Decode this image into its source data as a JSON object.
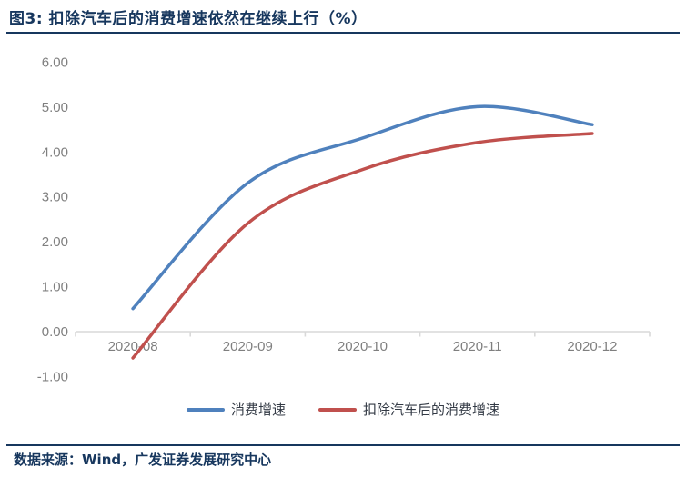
{
  "header": {
    "title": "图3:  扣除汽车后的消费增速依然在继续上行（%）"
  },
  "footer": {
    "source": "数据来源：Wind，广发证券发展研究中心"
  },
  "colors": {
    "title_navy": "#17375E",
    "axis_line": "#D9D9D9",
    "tick_label": "#7F7F7F",
    "series_blue": "#4F81BD",
    "series_red": "#C0504D"
  },
  "chart_data": {
    "type": "line",
    "smooth": true,
    "title": "图3:  扣除汽车后的消费增速依然在继续上行（%）",
    "categories": [
      "2020-08",
      "2020-09",
      "2020-10",
      "2020-11",
      "2020-12"
    ],
    "series": [
      {
        "name": "消费增速",
        "color": "#4F81BD",
        "values": [
          0.5,
          3.3,
          4.3,
          5.0,
          4.6
        ]
      },
      {
        "name": "扣除汽车后的消费增速",
        "color": "#C0504D",
        "values": [
          -0.6,
          2.4,
          3.6,
          4.2,
          4.4
        ]
      }
    ],
    "xlabel": "",
    "ylabel": "",
    "ylim": [
      -1,
      6
    ],
    "yticks": [
      6,
      5,
      4,
      3,
      2,
      1,
      0,
      -1
    ],
    "ytick_labels": [
      "6.00",
      "5.00",
      "4.00",
      "3.00",
      "2.00",
      "1.00",
      "0.00",
      "-1.00"
    ],
    "grid": false,
    "legend_position": "bottom"
  }
}
